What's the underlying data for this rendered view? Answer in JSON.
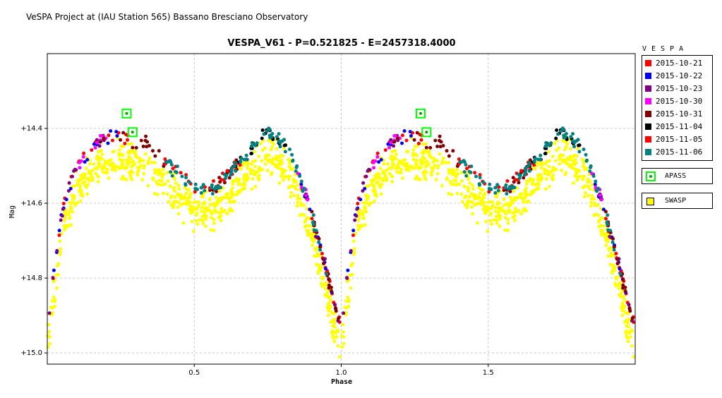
{
  "header": {
    "text": "VeSPA Project at (IAU Station 565) Bassano Bresciano Observatory"
  },
  "chart_data": {
    "type": "scatter",
    "title": "VESPA_V61  -  P=0.521825  -  E=2457318.4000",
    "xlabel": "Phase",
    "ylabel": "Mag",
    "xlim": [
      0.0,
      2.0
    ],
    "ylim": [
      14.2,
      15.03
    ],
    "y_inverted": true,
    "grid": true,
    "x_ticks": [
      0.5,
      1.0,
      1.5
    ],
    "x_tick_labels": [
      "0.5",
      "1.0",
      "1.5"
    ],
    "y_ticks": [
      14.4,
      14.6,
      14.8,
      15.0
    ],
    "y_tick_labels": [
      "+14.4",
      "+14.6",
      "+14.8",
      "+15.0"
    ],
    "phase_repeat": true,
    "model": {
      "description_values": [
        [
          0.0,
          14.93
        ],
        [
          0.05,
          14.62
        ],
        [
          0.1,
          14.5
        ],
        [
          0.18,
          14.43
        ],
        [
          0.25,
          14.42
        ],
        [
          0.33,
          14.44
        ],
        [
          0.42,
          14.5
        ],
        [
          0.5,
          14.56
        ],
        [
          0.55,
          14.57
        ],
        [
          0.62,
          14.52
        ],
        [
          0.7,
          14.45
        ],
        [
          0.75,
          14.41
        ],
        [
          0.82,
          14.45
        ],
        [
          0.88,
          14.58
        ],
        [
          0.93,
          14.72
        ],
        [
          0.98,
          14.88
        ],
        [
          1.0,
          14.93
        ]
      ]
    },
    "series": [
      {
        "name": "2015-10-21",
        "color": "#ff0000",
        "phase_range": [
          [
            0.0,
            0.28
          ],
          [
            0.9,
            1.0
          ]
        ],
        "count": 40
      },
      {
        "name": "2015-10-22",
        "color": "#0000ff",
        "phase_range": [
          [
            0.0,
            0.25
          ],
          [
            0.85,
            1.0
          ]
        ],
        "count": 30
      },
      {
        "name": "2015-10-23",
        "color": "#800080",
        "phase_range": [
          [
            0.0,
            0.2
          ],
          [
            0.86,
            1.0
          ]
        ],
        "count": 30
      },
      {
        "name": "2015-10-30",
        "color": "#ff00ff",
        "phase_range": [
          [
            0.1,
            0.22
          ],
          [
            0.85,
            0.9
          ]
        ],
        "count": 16
      },
      {
        "name": "2015-10-31",
        "color": "#800000",
        "phase_range": [
          [
            0.15,
            0.42
          ],
          [
            0.55,
            0.68
          ],
          [
            0.9,
            1.0
          ]
        ],
        "count": 60
      },
      {
        "name": "2015-11-04",
        "color": "#000000",
        "phase_range": [
          [
            0.62,
            0.82
          ]
        ],
        "count": 24
      },
      {
        "name": "2015-11-05",
        "color": "#ff0000",
        "phase_range": [
          [
            0.4,
            0.66
          ]
        ],
        "count": 24
      },
      {
        "name": "2015-11-06",
        "color": "#008080",
        "phase_range": [
          [
            0.4,
            0.95
          ]
        ],
        "count": 90
      }
    ],
    "apass": {
      "name": "APASS",
      "points": [
        [
          0.27,
          14.36
        ],
        [
          0.29,
          14.41
        ]
      ]
    },
    "swasp": {
      "name": "SWASP",
      "color": "#ffff00",
      "count": 700
    }
  },
  "legend": {
    "header": "VESPA",
    "items": [
      {
        "label": "2015-10-21",
        "color": "#ff0000"
      },
      {
        "label": "2015-10-22",
        "color": "#0000ff"
      },
      {
        "label": "2015-10-23",
        "color": "#800080"
      },
      {
        "label": "2015-10-30",
        "color": "#ff00ff"
      },
      {
        "label": "2015-10-31",
        "color": "#800000"
      },
      {
        "label": "2015-11-04",
        "color": "#000000"
      },
      {
        "label": "2015-11-05",
        "color": "#ff0000"
      },
      {
        "label": "2015-11-06",
        "color": "#008080"
      }
    ],
    "apass_label": "APASS",
    "swasp_label": "SWASP"
  }
}
